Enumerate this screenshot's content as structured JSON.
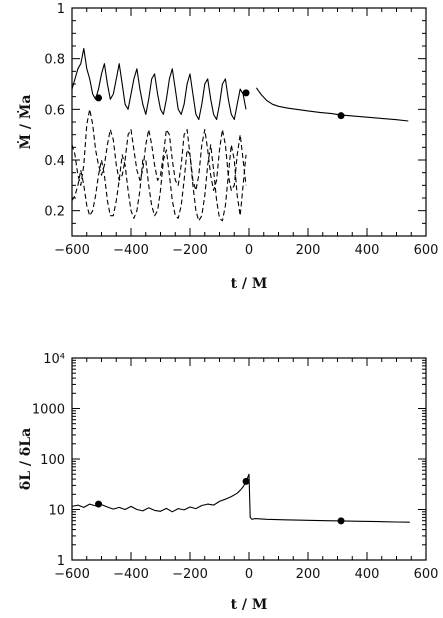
{
  "chart_data": [
    {
      "type": "line",
      "xlabel": "t / M",
      "ylabel": "Ṁ / Ṁa",
      "xlim": [
        -600,
        600
      ],
      "ylim": [
        0.1,
        1.0
      ],
      "yscale": "linear",
      "xticks": [
        -600,
        -400,
        -200,
        0,
        200,
        400,
        600
      ],
      "yticks": [
        0.2,
        0.4,
        0.6,
        0.8,
        1
      ],
      "x_tick_labels": [
        "−600",
        "−400",
        "−200",
        "0",
        "200",
        "400",
        "600"
      ],
      "y_tick_labels": [
        "0.2",
        "0.4",
        "0.6",
        "0.8",
        "1"
      ],
      "grid": false,
      "series": [
        {
          "style": "solid",
          "color": "#000000",
          "points": [
            [
              -600,
              0.68
            ],
            [
              -590,
              0.72
            ],
            [
              -580,
              0.76
            ],
            [
              -570,
              0.78
            ],
            [
              -560,
              0.84
            ],
            [
              -550,
              0.76
            ],
            [
              -540,
              0.72
            ],
            [
              -530,
              0.66
            ],
            [
              -520,
              0.64
            ],
            [
              -510,
              0.68
            ],
            [
              -500,
              0.74
            ],
            [
              -490,
              0.78
            ],
            [
              -480,
              0.7
            ],
            [
              -470,
              0.64
            ],
            [
              -460,
              0.66
            ],
            [
              -450,
              0.72
            ],
            [
              -440,
              0.78
            ],
            [
              -430,
              0.7
            ],
            [
              -420,
              0.62
            ],
            [
              -410,
              0.6
            ],
            [
              -400,
              0.66
            ],
            [
              -390,
              0.72
            ],
            [
              -380,
              0.76
            ],
            [
              -370,
              0.68
            ],
            [
              -360,
              0.62
            ],
            [
              -350,
              0.58
            ],
            [
              -340,
              0.64
            ],
            [
              -330,
              0.72
            ],
            [
              -320,
              0.74
            ],
            [
              -310,
              0.66
            ],
            [
              -300,
              0.6
            ],
            [
              -290,
              0.58
            ],
            [
              -280,
              0.64
            ],
            [
              -270,
              0.72
            ],
            [
              -260,
              0.76
            ],
            [
              -250,
              0.68
            ],
            [
              -240,
              0.6
            ],
            [
              -230,
              0.58
            ],
            [
              -220,
              0.62
            ],
            [
              -210,
              0.7
            ],
            [
              -200,
              0.74
            ],
            [
              -190,
              0.66
            ],
            [
              -180,
              0.58
            ],
            [
              -170,
              0.56
            ],
            [
              -160,
              0.62
            ],
            [
              -150,
              0.7
            ],
            [
              -140,
              0.72
            ],
            [
              -130,
              0.64
            ],
            [
              -120,
              0.58
            ],
            [
              -110,
              0.56
            ],
            [
              -100,
              0.62
            ],
            [
              -90,
              0.7
            ],
            [
              -80,
              0.72
            ],
            [
              -70,
              0.64
            ],
            [
              -60,
              0.58
            ],
            [
              -50,
              0.56
            ],
            [
              -40,
              0.62
            ],
            [
              -30,
              0.68
            ],
            [
              -20,
              0.66
            ],
            [
              -10,
              0.6
            ]
          ]
        },
        {
          "style": "solid",
          "color": "#000000",
          "points": [
            [
              25,
              0.685
            ],
            [
              40,
              0.66
            ],
            [
              60,
              0.635
            ],
            [
              80,
              0.62
            ],
            [
              100,
              0.612
            ],
            [
              130,
              0.605
            ],
            [
              160,
              0.6
            ],
            [
              200,
              0.594
            ],
            [
              240,
              0.588
            ],
            [
              280,
              0.583
            ],
            [
              310,
              0.578
            ],
            [
              340,
              0.575
            ],
            [
              380,
              0.571
            ],
            [
              420,
              0.567
            ],
            [
              460,
              0.563
            ],
            [
              500,
              0.559
            ],
            [
              540,
              0.554
            ]
          ]
        },
        {
          "style": "dashed",
          "color": "#000000",
          "points": [
            [
              -600,
              0.46
            ],
            [
              -590,
              0.42
            ],
            [
              -580,
              0.34
            ],
            [
              -570,
              0.3
            ],
            [
              -560,
              0.38
            ],
            [
              -550,
              0.54
            ],
            [
              -540,
              0.6
            ],
            [
              -530,
              0.54
            ],
            [
              -520,
              0.44
            ],
            [
              -510,
              0.38
            ],
            [
              -500,
              0.34
            ],
            [
              -490,
              0.38
            ],
            [
              -480,
              0.46
            ],
            [
              -470,
              0.52
            ],
            [
              -460,
              0.48
            ],
            [
              -450,
              0.38
            ],
            [
              -440,
              0.32
            ],
            [
              -430,
              0.34
            ],
            [
              -420,
              0.4
            ],
            [
              -410,
              0.5
            ],
            [
              -400,
              0.52
            ],
            [
              -390,
              0.44
            ],
            [
              -380,
              0.36
            ],
            [
              -370,
              0.32
            ],
            [
              -360,
              0.36
            ],
            [
              -350,
              0.46
            ],
            [
              -340,
              0.52
            ],
            [
              -330,
              0.46
            ],
            [
              -320,
              0.38
            ],
            [
              -310,
              0.32
            ],
            [
              -300,
              0.34
            ],
            [
              -290,
              0.42
            ],
            [
              -280,
              0.52
            ],
            [
              -270,
              0.5
            ],
            [
              -260,
              0.4
            ],
            [
              -250,
              0.32
            ],
            [
              -240,
              0.3
            ],
            [
              -230,
              0.38
            ],
            [
              -220,
              0.5
            ],
            [
              -210,
              0.52
            ],
            [
              -200,
              0.42
            ],
            [
              -190,
              0.32
            ],
            [
              -180,
              0.28
            ],
            [
              -170,
              0.34
            ],
            [
              -160,
              0.46
            ],
            [
              -150,
              0.52
            ],
            [
              -140,
              0.44
            ],
            [
              -130,
              0.34
            ],
            [
              -120,
              0.28
            ],
            [
              -110,
              0.32
            ],
            [
              -100,
              0.44
            ],
            [
              -90,
              0.52
            ],
            [
              -80,
              0.46
            ],
            [
              -70,
              0.34
            ],
            [
              -60,
              0.28
            ],
            [
              -50,
              0.3
            ],
            [
              -40,
              0.42
            ],
            [
              -30,
              0.5
            ],
            [
              -20,
              0.4
            ],
            [
              -10,
              0.3
            ]
          ]
        },
        {
          "style": "dashed",
          "color": "#000000",
          "points": [
            [
              -600,
              0.24
            ],
            [
              -590,
              0.26
            ],
            [
              -580,
              0.3
            ],
            [
              -570,
              0.36
            ],
            [
              -560,
              0.3
            ],
            [
              -550,
              0.22
            ],
            [
              -540,
              0.18
            ],
            [
              -530,
              0.2
            ],
            [
              -520,
              0.26
            ],
            [
              -510,
              0.34
            ],
            [
              -500,
              0.4
            ],
            [
              -490,
              0.34
            ],
            [
              -480,
              0.24
            ],
            [
              -470,
              0.18
            ],
            [
              -460,
              0.18
            ],
            [
              -450,
              0.24
            ],
            [
              -440,
              0.32
            ],
            [
              -430,
              0.42
            ],
            [
              -420,
              0.38
            ],
            [
              -410,
              0.28
            ],
            [
              -400,
              0.2
            ],
            [
              -390,
              0.17
            ],
            [
              -380,
              0.2
            ],
            [
              -370,
              0.28
            ],
            [
              -360,
              0.4
            ],
            [
              -350,
              0.4
            ],
            [
              -340,
              0.3
            ],
            [
              -330,
              0.22
            ],
            [
              -320,
              0.18
            ],
            [
              -310,
              0.2
            ],
            [
              -300,
              0.28
            ],
            [
              -290,
              0.4
            ],
            [
              -280,
              0.44
            ],
            [
              -270,
              0.34
            ],
            [
              -260,
              0.24
            ],
            [
              -250,
              0.18
            ],
            [
              -240,
              0.17
            ],
            [
              -230,
              0.22
            ],
            [
              -220,
              0.32
            ],
            [
              -210,
              0.44
            ],
            [
              -200,
              0.42
            ],
            [
              -190,
              0.3
            ],
            [
              -180,
              0.2
            ],
            [
              -170,
              0.16
            ],
            [
              -160,
              0.18
            ],
            [
              -150,
              0.26
            ],
            [
              -140,
              0.38
            ],
            [
              -130,
              0.46
            ],
            [
              -120,
              0.36
            ],
            [
              -110,
              0.24
            ],
            [
              -100,
              0.17
            ],
            [
              -90,
              0.16
            ],
            [
              -80,
              0.22
            ],
            [
              -70,
              0.34
            ],
            [
              -60,
              0.46
            ],
            [
              -50,
              0.4
            ],
            [
              -40,
              0.26
            ],
            [
              -30,
              0.18
            ],
            [
              -20,
              0.3
            ],
            [
              -10,
              0.42
            ]
          ]
        }
      ],
      "markers": [
        [
          -510,
          0.645
        ],
        [
          -10,
          0.665
        ],
        [
          312,
          0.575
        ]
      ]
    },
    {
      "type": "line",
      "xlabel": "t / M",
      "ylabel": "δL / δLa",
      "xlim": [
        -600,
        600
      ],
      "ylim": [
        1,
        10000
      ],
      "yscale": "log",
      "xticks": [
        -600,
        -400,
        -200,
        0,
        200,
        400,
        600
      ],
      "yticks": [
        1,
        10,
        100,
        1000,
        10000
      ],
      "x_tick_labels": [
        "−600",
        "−400",
        "−200",
        "0",
        "200",
        "400",
        "600"
      ],
      "y_tick_labels": [
        "1",
        "10",
        "100",
        "1000",
        "10⁴"
      ],
      "grid": false,
      "series": [
        {
          "style": "solid",
          "color": "#000000",
          "points": [
            [
              -600,
              11.5
            ],
            [
              -580,
              12.2
            ],
            [
              -560,
              11.0
            ],
            [
              -540,
              12.8
            ],
            [
              -520,
              11.8
            ],
            [
              -500,
              12.5
            ],
            [
              -480,
              11.2
            ],
            [
              -460,
              10.2
            ],
            [
              -440,
              11.0
            ],
            [
              -420,
              10.0
            ],
            [
              -400,
              11.5
            ],
            [
              -380,
              10.0
            ],
            [
              -360,
              9.4
            ],
            [
              -340,
              10.8
            ],
            [
              -320,
              9.6
            ],
            [
              -300,
              9.2
            ],
            [
              -280,
              10.5
            ],
            [
              -260,
              9.0
            ],
            [
              -240,
              10.4
            ],
            [
              -220,
              9.8
            ],
            [
              -200,
              11.2
            ],
            [
              -180,
              10.4
            ],
            [
              -160,
              12.0
            ],
            [
              -140,
              12.8
            ],
            [
              -120,
              12.2
            ],
            [
              -100,
              14.5
            ],
            [
              -80,
              16.0
            ],
            [
              -60,
              18.0
            ],
            [
              -40,
              21.0
            ],
            [
              -30,
              24.0
            ],
            [
              -20,
              28.0
            ],
            [
              -12,
              34.0
            ],
            [
              -5,
              42.0
            ],
            [
              0,
              50.0
            ],
            [
              4,
              7.0
            ],
            [
              10,
              6.4
            ],
            [
              20,
              6.6
            ],
            [
              60,
              6.4
            ],
            [
              120,
              6.25
            ],
            [
              200,
              6.1
            ],
            [
              260,
              6.0
            ],
            [
              312,
              5.95
            ],
            [
              380,
              5.85
            ],
            [
              440,
              5.75
            ],
            [
              500,
              5.65
            ],
            [
              545,
              5.6
            ]
          ]
        }
      ],
      "markers": [
        [
          -510,
          12.8
        ],
        [
          -10,
          36
        ],
        [
          312,
          5.95
        ]
      ]
    }
  ]
}
